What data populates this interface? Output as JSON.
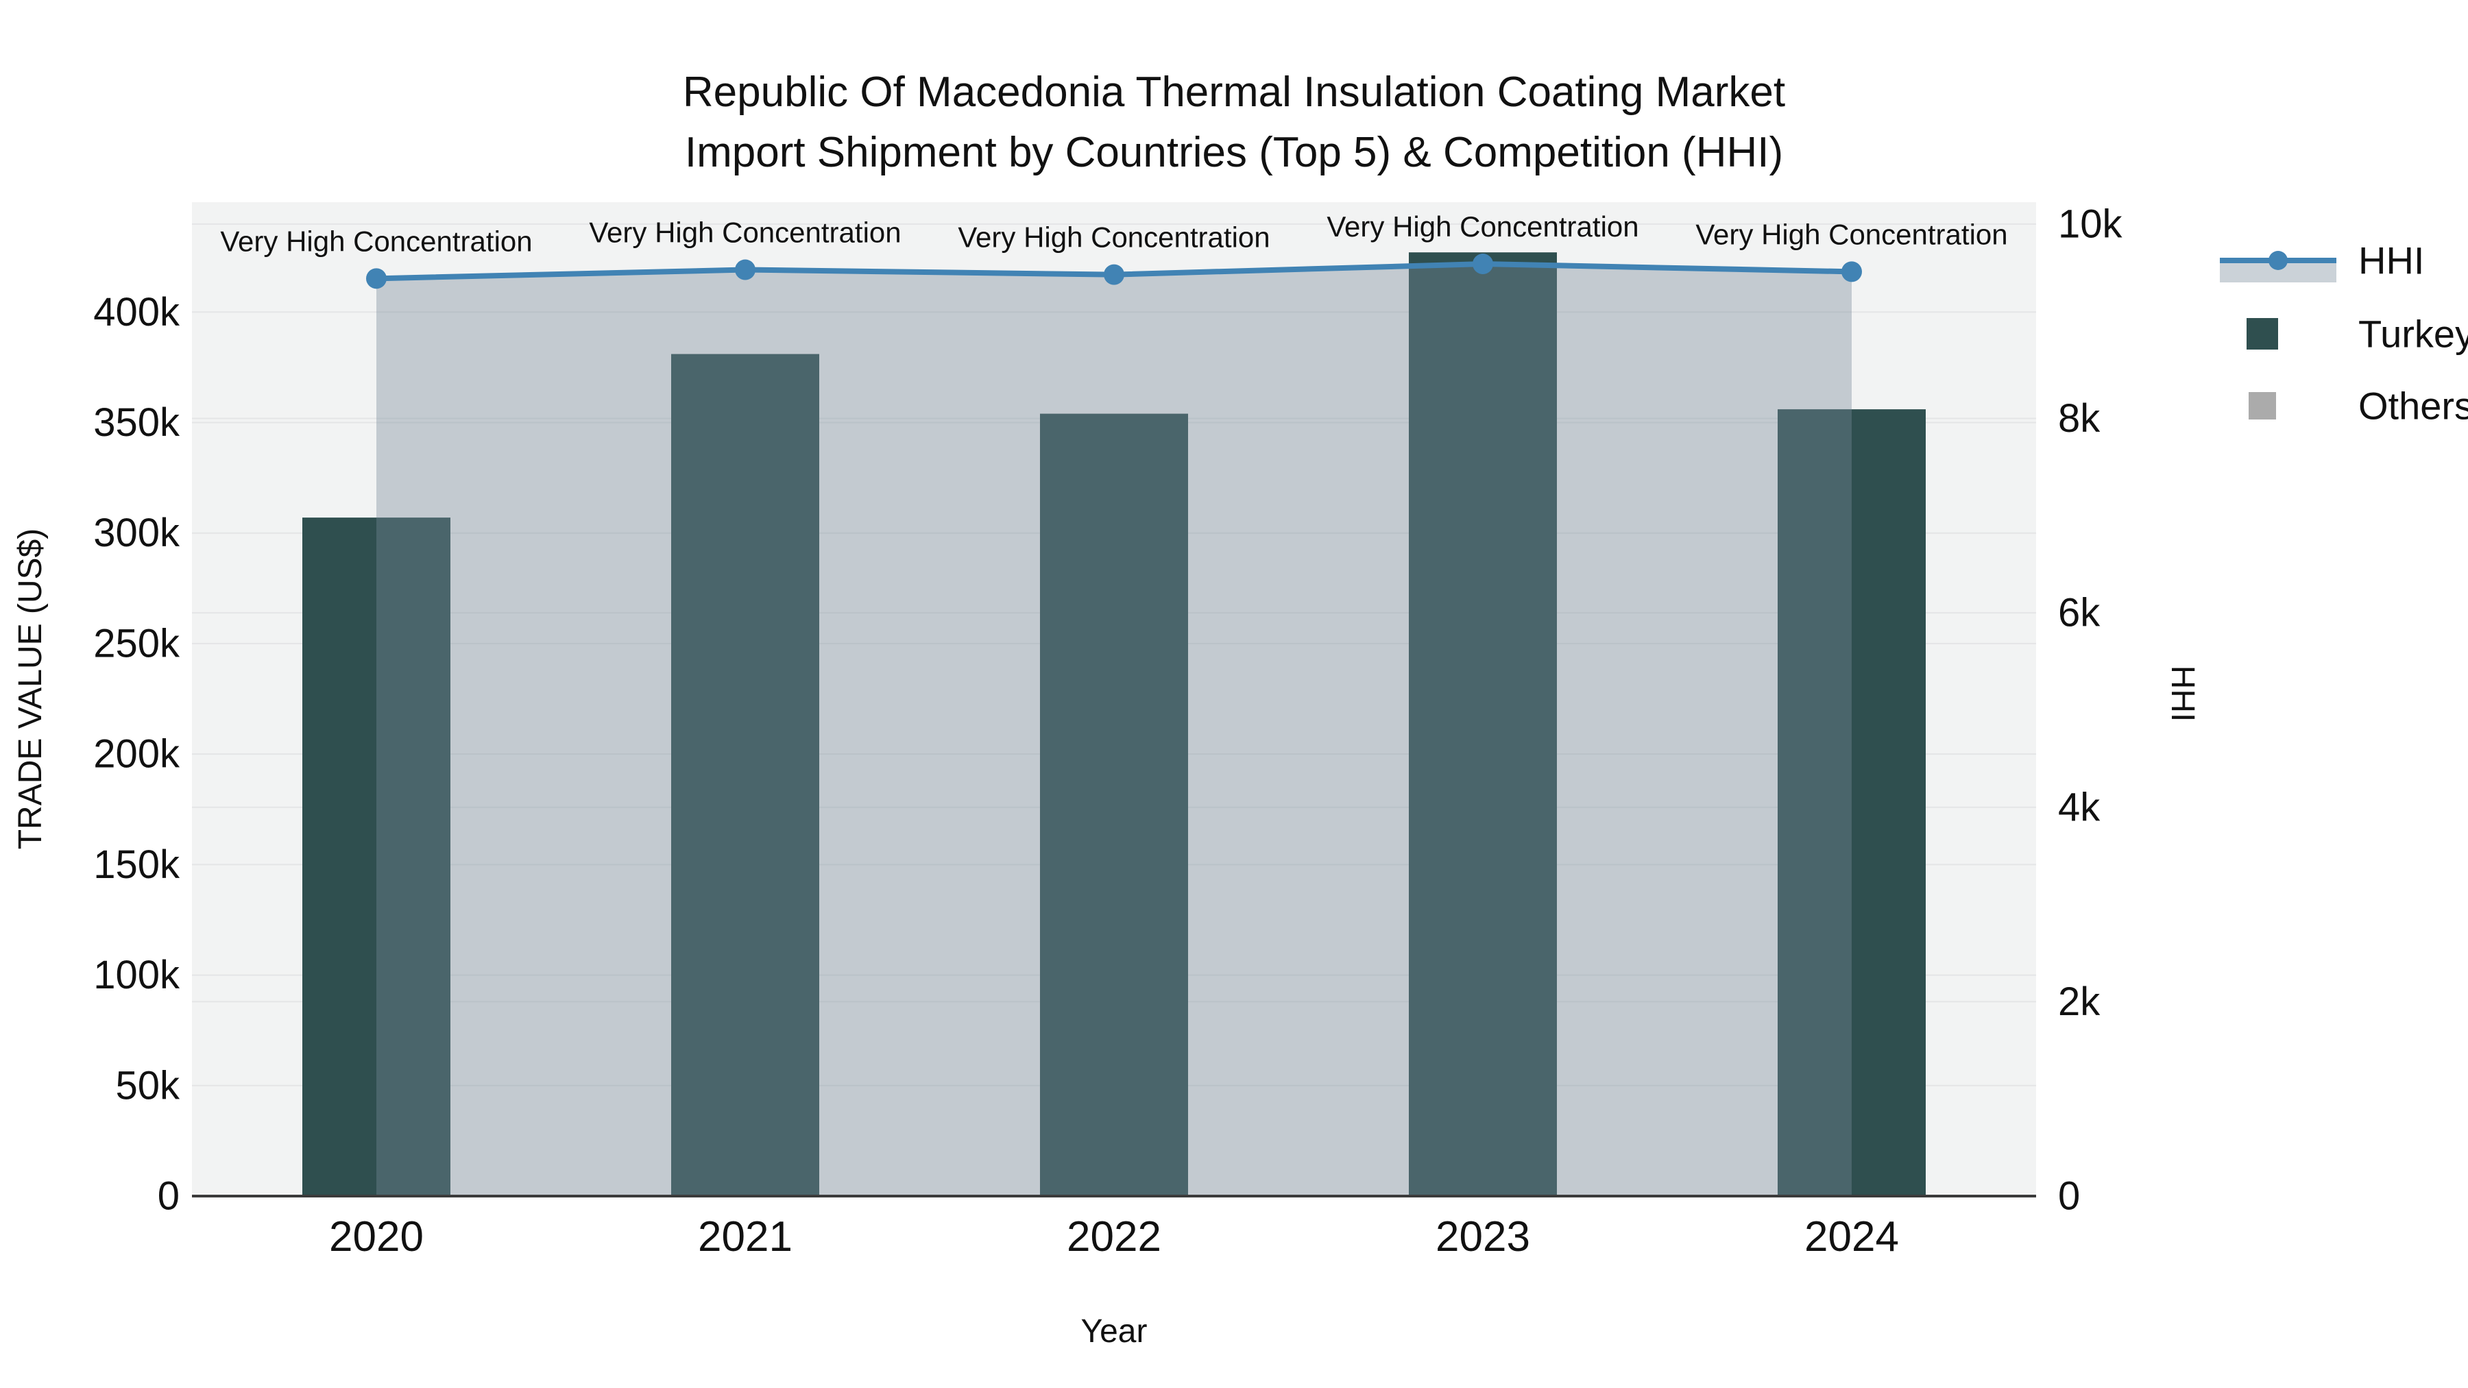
{
  "title": {
    "line1": "Republic Of Macedonia Thermal Insulation Coating Market",
    "line2": "Import Shipment by Countries (Top 5) & Competition (HHI)"
  },
  "chart_data": {
    "type": "bar+line",
    "categories": [
      "2020",
      "2021",
      "2022",
      "2023",
      "2024"
    ],
    "series": [
      {
        "name": "Turkey",
        "type": "bar",
        "axis": "left",
        "values": [
          307000,
          381000,
          354000,
          427000,
          356000
        ]
      },
      {
        "name": "Others",
        "type": "bar",
        "axis": "left",
        "values": [
          null,
          null,
          null,
          null,
          null
        ],
        "note": "legend entry visible; bars not visually discernible in plot"
      },
      {
        "name": "HHI",
        "type": "line+area",
        "axis": "right",
        "values": [
          9440,
          9530,
          9480,
          9590,
          9510
        ]
      }
    ],
    "annotations": [
      "Very High Concentration",
      "Very High Concentration",
      "Very High Concentration",
      "Very High Concentration",
      "Very High Concentration"
    ],
    "x_axis": {
      "title": "Year"
    },
    "left_axis": {
      "title": "TRADE VALUE (US$)",
      "tick_values": [
        0,
        50000,
        100000,
        150000,
        200000,
        250000,
        300000,
        350000,
        400000
      ],
      "tick_labels": [
        "0",
        "50k",
        "100k",
        "150k",
        "200k",
        "250k",
        "300k",
        "350k",
        "400k"
      ],
      "range": [
        0,
        449700
      ],
      "grid": true
    },
    "right_axis": {
      "title": "HHI",
      "tick_values": [
        0,
        2000,
        4000,
        6000,
        8000,
        10000
      ],
      "tick_labels": [
        "0",
        "2k",
        "4k",
        "6k",
        "8k",
        "10k"
      ],
      "range": [
        0,
        10225
      ],
      "grid": true
    },
    "legend": [
      {
        "label": "HHI",
        "swatch": "line-marker-fill"
      },
      {
        "label": "Turkey",
        "swatch": "square"
      },
      {
        "label": "Others",
        "swatch": "square"
      }
    ],
    "legend_position": "right"
  },
  "colors": {
    "turkey_bar": "#2F4F4F",
    "others_swatch": "#ABABAB",
    "hhi_line": "#4183B4",
    "hhi_fill": "rgba(119,136,153,0.38)",
    "plot_background": "#F2F3F3",
    "gridline": "#E4E5E6",
    "axis_line": "#3B3B3B",
    "text": "#111111"
  }
}
